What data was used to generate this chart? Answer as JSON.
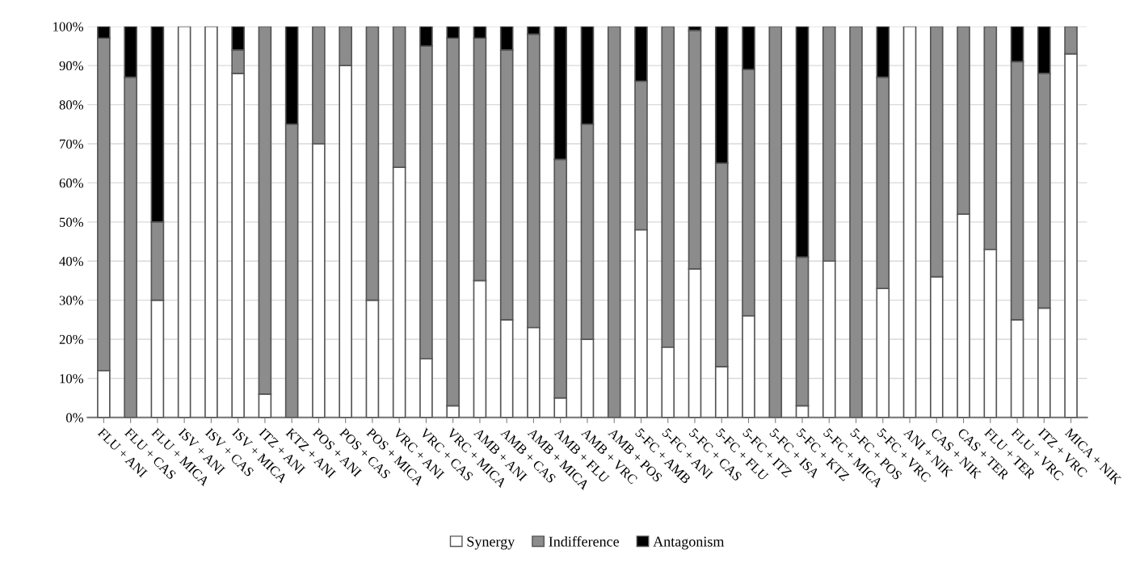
{
  "chart_data": {
    "type": "bar",
    "stacked": true,
    "categories": [
      "FLU + ANI",
      "FLU + CAS",
      "FLU + MICA",
      "ISV + ANI",
      "ISV + CAS",
      "ISV + MICA",
      "ITZ + ANI",
      "KTZ + ANI",
      "POS + ANI",
      "POS + CAS",
      "POS + MICA",
      "VRC + ANI",
      "VRC + CAS",
      "VRC + MICA",
      "AMB + ANI",
      "AMB + CAS",
      "AMB + MICA",
      "AMB + FLU",
      "AMB + VRC",
      "AMB + POS",
      "5-FC + AMB",
      "5-FC + ANI",
      "5-FC + CAS",
      "5-FC + FLU",
      "5-FC + ITZ",
      "5-FC + ISA",
      "5-FC + KTZ",
      "5-FC + MICA",
      "5-FC + POS",
      "5-FC + VRC",
      "ANI + NIK",
      "CAS + NIK",
      "CAS + TER",
      "FLU + TER",
      "FLU + VRC",
      "ITZ + VRC",
      "MICA + NIK"
    ],
    "series": [
      {
        "name": "Synergy",
        "color": "#ffffff",
        "values": [
          12,
          0,
          30,
          100,
          100,
          88,
          6,
          0,
          70,
          90,
          30,
          64,
          15,
          3,
          35,
          25,
          23,
          5,
          20,
          0,
          48,
          18,
          38,
          13,
          26,
          0,
          3,
          40,
          0,
          33,
          100,
          36,
          52,
          43,
          25,
          28,
          93
        ]
      },
      {
        "name": "Indifference",
        "color": "#8c8c8c",
        "values": [
          85,
          87,
          20,
          0,
          0,
          6,
          94,
          75,
          30,
          10,
          70,
          36,
          80,
          94,
          62,
          69,
          75,
          61,
          55,
          100,
          38,
          82,
          61,
          52,
          63,
          100,
          38,
          60,
          100,
          54,
          0,
          64,
          48,
          57,
          66,
          60,
          7
        ]
      },
      {
        "name": "Antagonism",
        "color": "#000000",
        "values": [
          3,
          13,
          50,
          0,
          0,
          6,
          0,
          25,
          0,
          0,
          0,
          0,
          5,
          3,
          3,
          6,
          2,
          34,
          25,
          0,
          14,
          0,
          1,
          35,
          11,
          0,
          59,
          0,
          0,
          13,
          0,
          0,
          0,
          0,
          9,
          12,
          0
        ]
      }
    ],
    "ylim": [
      0,
      100
    ],
    "yticks": [
      {
        "value": 0,
        "label": "0%"
      },
      {
        "value": 10,
        "label": "10%"
      },
      {
        "value": 20,
        "label": "20%"
      },
      {
        "value": 30,
        "label": "30%"
      },
      {
        "value": 40,
        "label": "40%"
      },
      {
        "value": 50,
        "label": "50%"
      },
      {
        "value": 60,
        "label": "60%"
      },
      {
        "value": 70,
        "label": "70%"
      },
      {
        "value": 80,
        "label": "80%"
      },
      {
        "value": 90,
        "label": "90%"
      },
      {
        "value": 100,
        "label": "100%"
      }
    ],
    "grid": "y",
    "legend": "bottom"
  }
}
